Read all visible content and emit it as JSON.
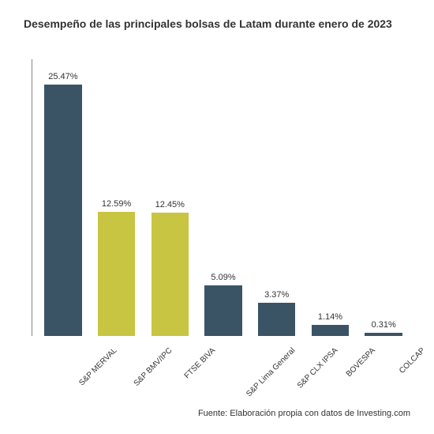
{
  "chart": {
    "type": "bar",
    "title": "Desempeño de las principales bolsas de Latam durante enero de 2023",
    "title_fontsize": 14,
    "title_color": "#333333",
    "background_color": "#ffffff",
    "axis_color": "#888888",
    "ymax": 28,
    "bar_width_pct": 70,
    "label_fontsize": 11,
    "category_fontsize": 10,
    "category_rotation": -45,
    "colors": {
      "primary": "#3a5465",
      "highlight": "#c7c541"
    },
    "categories": [
      "S&P MERVAL",
      "S&P BMV/IPC",
      "FTSE BIVA",
      "S&P Lima General",
      "S&P CLX IPSA",
      "BOVESPA",
      "COLCAP"
    ],
    "values": [
      25.47,
      12.59,
      12.45,
      5.09,
      3.37,
      1.14,
      0.31
    ],
    "value_labels": [
      "25.47%",
      "12.59%",
      "12.45%",
      "5.09%",
      "3.37%",
      "1.14%",
      "0.31%"
    ],
    "bar_colors": [
      "#3a5465",
      "#c7c541",
      "#c7c541",
      "#3a5465",
      "#3a5465",
      "#3a5465",
      "#3a5465"
    ],
    "source": "Fuente: Elaboración propia con datos de Investing.com",
    "source_fontsize": 11
  }
}
